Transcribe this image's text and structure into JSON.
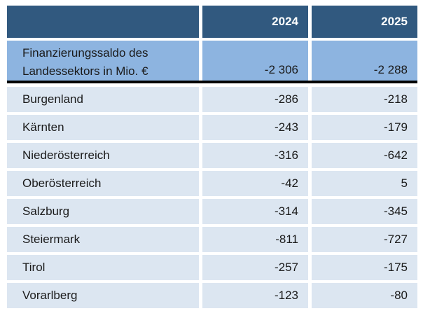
{
  "table": {
    "header": {
      "years": [
        "2024",
        "2025"
      ]
    },
    "summary_row": {
      "label_line1": "Finanzierungssaldo des",
      "label_line2": "Landessektors in Mio. €",
      "values": [
        "-2 306",
        "-2 288"
      ]
    },
    "rows": [
      {
        "label": "Burgenland",
        "values": [
          "-286",
          "-218"
        ]
      },
      {
        "label": "Kärnten",
        "values": [
          "-243",
          "-179"
        ]
      },
      {
        "label": "Niederösterreich",
        "values": [
          "-316",
          "-642"
        ]
      },
      {
        "label": "Oberösterreich",
        "values": [
          "-42",
          "5"
        ]
      },
      {
        "label": "Salzburg",
        "values": [
          "-314",
          "-345"
        ]
      },
      {
        "label": "Steiermark",
        "values": [
          "-811",
          "-727"
        ]
      },
      {
        "label": "Tirol",
        "values": [
          "-257",
          "-175"
        ]
      },
      {
        "label": "Vorarlberg",
        "values": [
          "-123",
          "-80"
        ]
      }
    ]
  },
  "colors": {
    "header_bg": "#31597F",
    "header_text": "#FFFFFF",
    "summary_bg": "#8DB4E0",
    "row_bg": "#DCE6F1",
    "body_text": "#1A1A1A",
    "divider": "#000000"
  },
  "chart_data": {
    "type": "table",
    "title": "Finanzierungssaldo des Landessektors in Mio. €",
    "columns": [
      "",
      "2024",
      "2025"
    ],
    "rows": [
      [
        "Finanzierungssaldo des Landessektors in Mio. €",
        -2306,
        -2288
      ],
      [
        "Burgenland",
        -286,
        -218
      ],
      [
        "Kärnten",
        -243,
        -179
      ],
      [
        "Niederösterreich",
        -316,
        -642
      ],
      [
        "Oberösterreich",
        -42,
        5
      ],
      [
        "Salzburg",
        -314,
        -345
      ],
      [
        "Steiermark",
        -811,
        -727
      ],
      [
        "Tirol",
        -257,
        -175
      ],
      [
        "Vorarlberg",
        -123,
        -80
      ]
    ]
  }
}
